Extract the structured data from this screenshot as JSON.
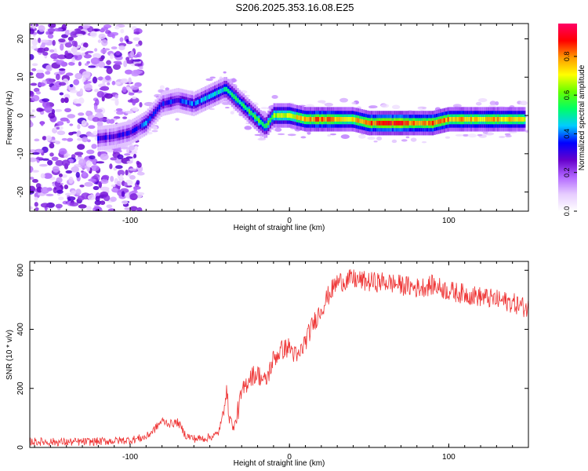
{
  "title": "S206.2025.353.16.08.E25",
  "chart_data": [
    {
      "type": "heatmap",
      "xlabel": "Height of straight line (km)",
      "ylabel": "Frequency (Hz)",
      "xlim": [
        -163,
        150
      ],
      "ylim": [
        -25,
        24
      ],
      "xticks": [
        -100,
        0,
        100
      ],
      "yticks": [
        -20,
        -10,
        0,
        10,
        20
      ],
      "colorbar": {
        "label": "Normalized spectral amplitude",
        "range": [
          0,
          0.97
        ],
        "ticks": [
          0.0,
          0.2,
          0.4,
          0.6,
          0.8
        ],
        "tick_labels": [
          "0.0",
          "0.2",
          "0.4",
          "0.6",
          "0.8"
        ],
        "colors": [
          "#ffffff",
          "#e6ccff",
          "#b266ff",
          "#6600cc",
          "#0000ff",
          "#00ccff",
          "#00ff66",
          "#66ff00",
          "#ffff00",
          "#ff9900",
          "#ff0000",
          "#ff0066"
        ]
      },
      "ridge_x": [
        -120,
        -110,
        -100,
        -90,
        -80,
        -70,
        -60,
        -50,
        -40,
        -30,
        -20,
        -15,
        -10,
        0,
        10,
        20,
        30,
        40,
        50,
        60,
        70,
        80,
        90,
        100,
        110,
        120,
        130,
        140,
        148
      ],
      "ridge_freq": [
        -6,
        -5.5,
        -4.5,
        -2,
        3,
        4,
        3,
        5,
        7,
        3,
        -1,
        -3,
        0,
        0,
        -1,
        -1,
        -1,
        -1,
        -2,
        -2,
        -2,
        -2,
        -2,
        -1,
        -1,
        -1,
        -1,
        -1,
        -1
      ],
      "ridge_amplitude": [
        0.3,
        0.3,
        0.3,
        0.4,
        0.35,
        0.35,
        0.4,
        0.45,
        0.5,
        0.55,
        0.6,
        0.55,
        0.65,
        0.7,
        0.8,
        0.85,
        0.8,
        0.75,
        0.85,
        0.9,
        0.9,
        0.8,
        0.85,
        0.8,
        0.8,
        0.75,
        0.8,
        0.75,
        0.7
      ]
    },
    {
      "type": "line",
      "xlabel": "Height of straight line (km)",
      "ylabel": "SNR (10 * v/v)",
      "xlim": [
        -163,
        150
      ],
      "ylim": [
        0,
        630
      ],
      "xticks": [
        -100,
        0,
        100
      ],
      "yticks": [
        0,
        200,
        400,
        600
      ],
      "color": "#ee3333",
      "x": [
        -163,
        -140,
        -120,
        -100,
        -90,
        -85,
        -80,
        -75,
        -70,
        -65,
        -60,
        -55,
        -50,
        -45,
        -42,
        -40,
        -38,
        -35,
        -30,
        -25,
        -20,
        -15,
        -10,
        -5,
        0,
        5,
        10,
        15,
        20,
        25,
        30,
        40,
        50,
        60,
        70,
        80,
        90,
        100,
        110,
        120,
        130,
        140,
        150
      ],
      "y": [
        20,
        18,
        20,
        25,
        35,
        60,
        90,
        80,
        85,
        40,
        30,
        30,
        35,
        45,
        100,
        200,
        120,
        60,
        180,
        240,
        250,
        220,
        300,
        330,
        340,
        300,
        360,
        420,
        470,
        520,
        560,
        570,
        560,
        560,
        550,
        540,
        550,
        530,
        520,
        510,
        500,
        490,
        470
      ],
      "noise_amplitude": 35
    }
  ]
}
